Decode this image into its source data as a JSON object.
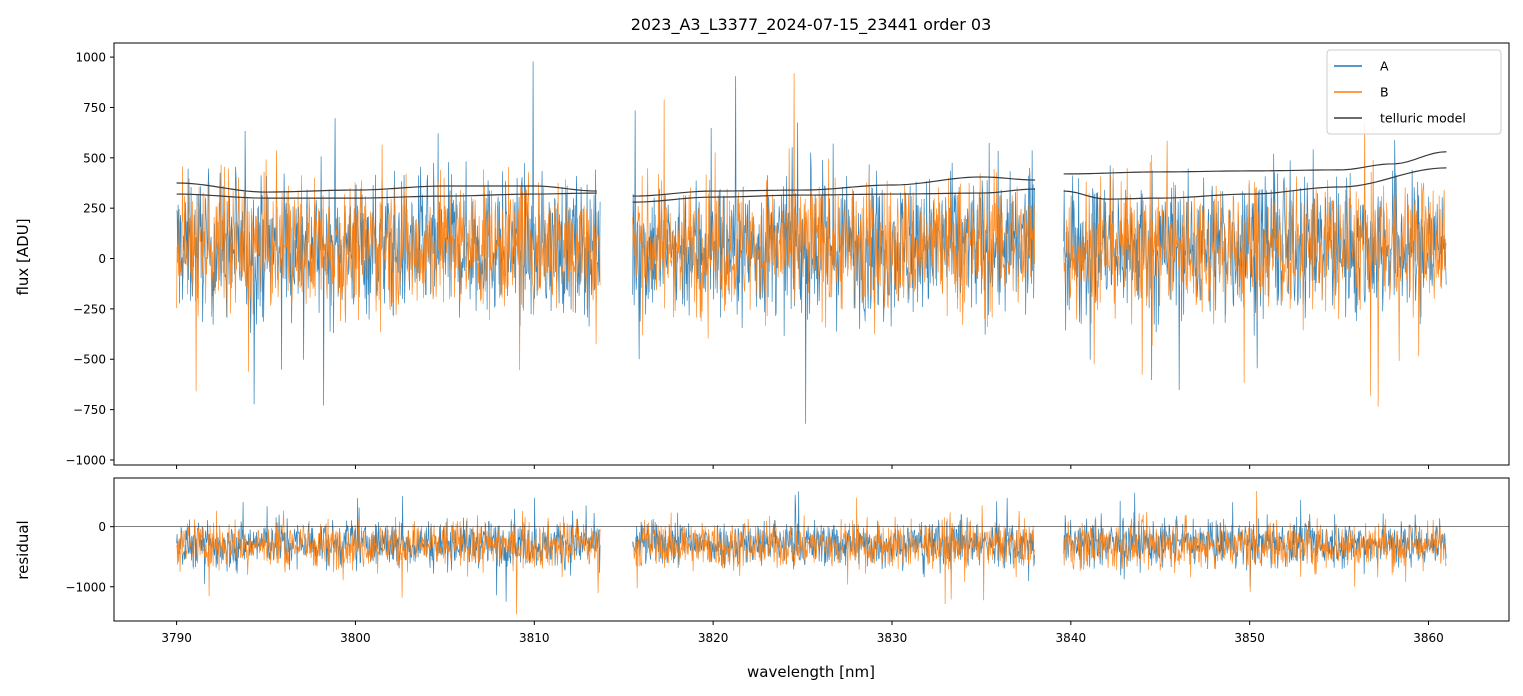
{
  "chart_data": [
    {
      "type": "line",
      "title": "2023_A3_L3377_2024-07-15_23441  order 03",
      "xlabel": "",
      "ylabel": "flux [ADU]",
      "xlim": [
        3786.5,
        3864.5
      ],
      "ylim": [
        -1025,
        1070
      ],
      "yticks": [
        -1000,
        -750,
        -500,
        -250,
        0,
        250,
        500,
        750,
        1000
      ],
      "ytick_labels": [
        "−1000",
        "−750",
        "−500",
        "−250",
        "0",
        "250",
        "500",
        "750",
        "1000"
      ],
      "segments": [
        [
          3790.0,
          3813.7
        ],
        [
          3815.5,
          3838.0
        ],
        [
          3839.6,
          3861.0
        ]
      ],
      "legend": {
        "position": "top-right",
        "entries": [
          "A",
          "B",
          "telluric model"
        ]
      },
      "series": [
        {
          "name": "A",
          "color": "#1f77b4",
          "description_center": 60,
          "noise_amplitude": 380
        },
        {
          "name": "B",
          "color": "#ff7f0e",
          "description_center": 60,
          "noise_amplitude": 360
        },
        {
          "name": "telluric model",
          "color": "#3a3a3a",
          "curves": [
            {
              "x": [
                3790,
                3795,
                3800,
                3805,
                3810,
                3813.5
              ],
              "y": [
                375,
                330,
                340,
                360,
                360,
                335
              ]
            },
            {
              "x": [
                3790,
                3795,
                3800,
                3805,
                3810,
                3813.5
              ],
              "y": [
                320,
                300,
                300,
                310,
                320,
                325
              ]
            },
            {
              "x": [
                3815.5,
                3820,
                3825,
                3830,
                3835,
                3838
              ],
              "y": [
                310,
                335,
                340,
                365,
                405,
                390
              ]
            },
            {
              "x": [
                3815.5,
                3820,
                3825,
                3830,
                3835,
                3838
              ],
              "y": [
                280,
                305,
                315,
                320,
                325,
                345
              ]
            },
            {
              "x": [
                3839.6,
                3845,
                3850,
                3855,
                3858,
                3861
              ],
              "y": [
                420,
                430,
                435,
                440,
                470,
                530
              ]
            },
            {
              "x": [
                3839.6,
                3842,
                3845,
                3850,
                3855,
                3861
              ],
              "y": [
                335,
                295,
                300,
                320,
                355,
                450
              ]
            }
          ]
        }
      ]
    },
    {
      "type": "line",
      "title": "",
      "xlabel": "wavelength [nm]",
      "ylabel": "residual",
      "xlim": [
        3786.5,
        3864.5
      ],
      "ylim": [
        -1570,
        810
      ],
      "xticks": [
        3790,
        3800,
        3810,
        3820,
        3830,
        3840,
        3850,
        3860
      ],
      "xtick_labels": [
        "3790",
        "3800",
        "3810",
        "3820",
        "3830",
        "3840",
        "3850",
        "3860"
      ],
      "yticks": [
        -1000,
        0
      ],
      "ytick_labels": [
        "−1000",
        "0"
      ],
      "zero_line": true,
      "series": [
        {
          "name": "A",
          "color": "#1f77b4",
          "center": -280,
          "noise_amplitude": 420
        },
        {
          "name": "B",
          "color": "#ff7f0e",
          "center": -300,
          "noise_amplitude": 440
        }
      ]
    }
  ]
}
